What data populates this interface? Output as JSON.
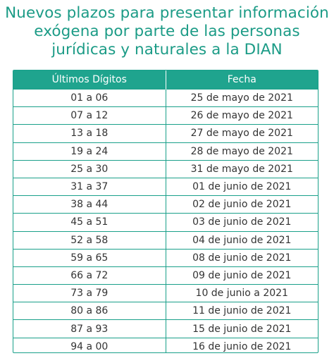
{
  "title": {
    "line1": "Nuevos plazos para presentar información",
    "line2": "exógena por parte de las personas",
    "line3": "jurídicas y naturales a la DIAN"
  },
  "colors": {
    "accent": "#1fa48e",
    "border": "#1aa08a",
    "title": "#1b9b86"
  },
  "table": {
    "headers": [
      "Últimos Dígitos",
      "Fecha"
    ],
    "rows": [
      {
        "digits": "01 a 06",
        "date": "25 de mayo de 2021"
      },
      {
        "digits": "07 a 12",
        "date": "26 de mayo de 2021"
      },
      {
        "digits": "13 a 18",
        "date": "27 de mayo de 2021"
      },
      {
        "digits": "19 a 24",
        "date": "28 de mayo de 2021"
      },
      {
        "digits": "25 a 30",
        "date": "31 de mayo de 2021"
      },
      {
        "digits": "31 a 37",
        "date": "01 de junio de 2021"
      },
      {
        "digits": "38 a 44",
        "date": "02 de junio de 2021"
      },
      {
        "digits": "45 a 51",
        "date": "03 de junio de 2021"
      },
      {
        "digits": "52 a 58",
        "date": "04 de junio de 2021"
      },
      {
        "digits": "59 a 65",
        "date": "08 de junio de 2021"
      },
      {
        "digits": "66 a 72",
        "date": "09 de junio de 2021"
      },
      {
        "digits": "73 a 79",
        "date": "10 de junio a 2021"
      },
      {
        "digits": "80 a 86",
        "date": "11 de junio de 2021"
      },
      {
        "digits": "87 a 93",
        "date": "15 de junio de 2021"
      },
      {
        "digits": "94 a 00",
        "date": "16 de junio de 2021"
      }
    ]
  }
}
